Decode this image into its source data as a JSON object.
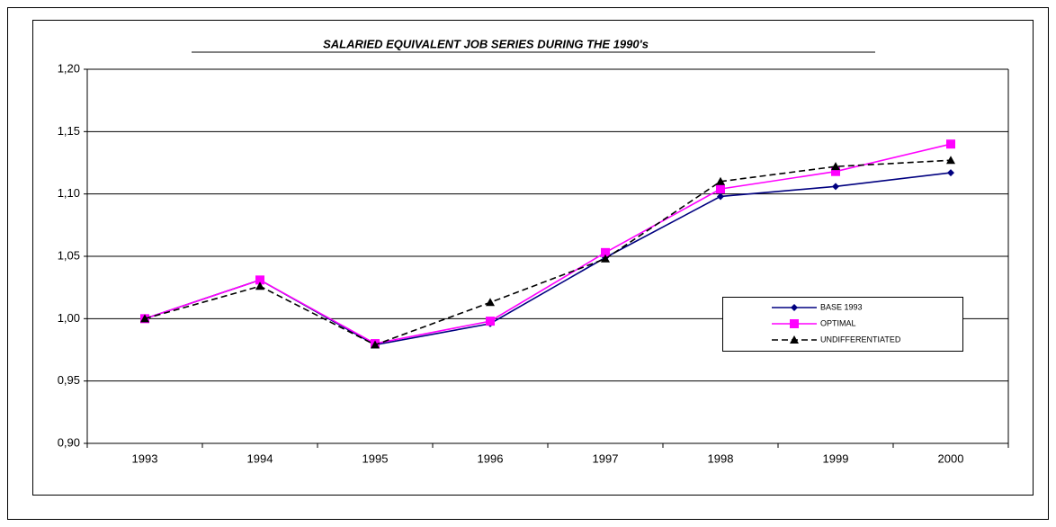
{
  "chart_data": {
    "type": "line",
    "title": "SALARIED EQUIVALENT JOB SERIES DURING THE 1990's",
    "categories": [
      "1993",
      "1994",
      "1995",
      "1996",
      "1997",
      "1998",
      "1999",
      "2000"
    ],
    "series": [
      {
        "name": "BASE 1993",
        "color": "#000080",
        "marker": "diamond",
        "dash": false,
        "values": [
          1.0,
          1.031,
          0.979,
          0.996,
          1.049,
          1.098,
          1.106,
          1.117
        ]
      },
      {
        "name": "OPTIMAL",
        "color": "#ff00ff",
        "marker": "square",
        "dash": false,
        "values": [
          1.0,
          1.031,
          0.98,
          0.998,
          1.053,
          1.104,
          1.118,
          1.14
        ]
      },
      {
        "name": "UNDIFFERENTIATED",
        "color": "#000000",
        "marker": "triangle",
        "dash": true,
        "values": [
          1.0,
          1.026,
          0.979,
          1.013,
          1.048,
          1.11,
          1.122,
          1.127
        ]
      }
    ],
    "ylim": [
      0.9,
      1.2
    ],
    "yticks": [
      {
        "value": 0.9,
        "label": "0,90"
      },
      {
        "value": 0.95,
        "label": "0,95"
      },
      {
        "value": 1.0,
        "label": "1,00"
      },
      {
        "value": 1.05,
        "label": "1,05"
      },
      {
        "value": 1.1,
        "label": "1,10"
      },
      {
        "value": 1.15,
        "label": "1,15"
      },
      {
        "value": 1.2,
        "label": "1,20"
      }
    ],
    "grid": true
  }
}
